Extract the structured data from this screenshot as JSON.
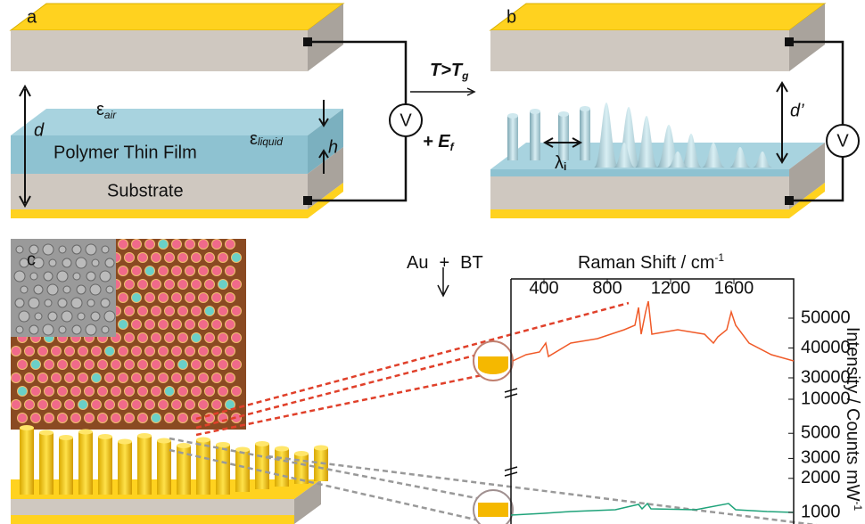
{
  "panels": {
    "a": {
      "label": "a",
      "eps_air": {
        "symbol": "ε",
        "sub": "air"
      },
      "d": "d",
      "film": "Polymer Thin Film",
      "eps_liquid": {
        "symbol": "ε",
        "sub": "liquid"
      },
      "h": "h",
      "substrate": "Substrate",
      "meter": "V"
    },
    "b": {
      "label": "b",
      "d_prime": "d’",
      "lambda": {
        "symbol": "λ",
        "sub": "i"
      },
      "meter": "V"
    },
    "c": {
      "label": "c"
    }
  },
  "transition": {
    "condition": {
      "main": "T>T",
      "sub": "g"
    },
    "field": {
      "main": "+ E",
      "sub": "f"
    }
  },
  "deposition": {
    "metal": "Au",
    "plus": "+",
    "molecule": "BT"
  },
  "spectrum": {
    "x_label": {
      "main": "Raman Shift / cm",
      "sup": "-1"
    },
    "xticks": [
      400,
      800,
      1200,
      1600
    ],
    "y_label": {
      "main": "Intensity / Counts mW",
      "sup": "-1"
    },
    "yticks": [
      50000,
      40000,
      30000,
      10000,
      5000,
      3000,
      2000,
      1000
    ]
  }
}
